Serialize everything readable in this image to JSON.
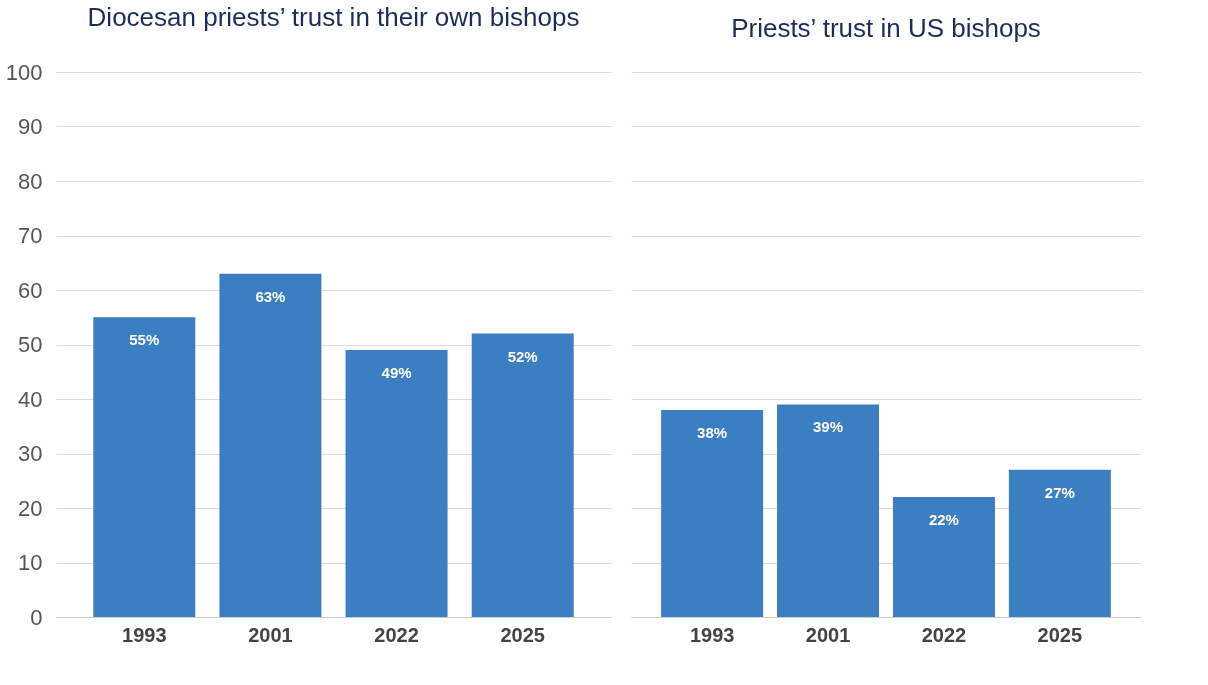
{
  "chart_data": [
    {
      "type": "bar",
      "title": "Diocesan priests’ trust in their own bishops",
      "categories": [
        "1993",
        "2001",
        "2022",
        "2025"
      ],
      "values": [
        55,
        63,
        49,
        52
      ],
      "value_labels": [
        "55%",
        "63%",
        "49%",
        "52%"
      ],
      "color": "#3b7fc2",
      "ylim": [
        0,
        100
      ],
      "yticks": [
        0,
        10,
        20,
        30,
        40,
        50,
        60,
        70,
        80,
        90,
        100
      ],
      "grid": "y"
    },
    {
      "type": "bar",
      "title": "Priests’ trust in US bishops",
      "categories": [
        "1993",
        "2001",
        "2022",
        "2025"
      ],
      "values": [
        38,
        39,
        22,
        27
      ],
      "value_labels": [
        "38%",
        "39%",
        "22%",
        "27%"
      ],
      "color": "#3b7fc2",
      "ylim": [
        0,
        100
      ],
      "yticks": [
        0,
        10,
        20,
        30,
        40,
        50,
        60,
        70,
        80,
        90,
        100
      ],
      "grid": "y",
      "tick_labels": "x"
    }
  ]
}
